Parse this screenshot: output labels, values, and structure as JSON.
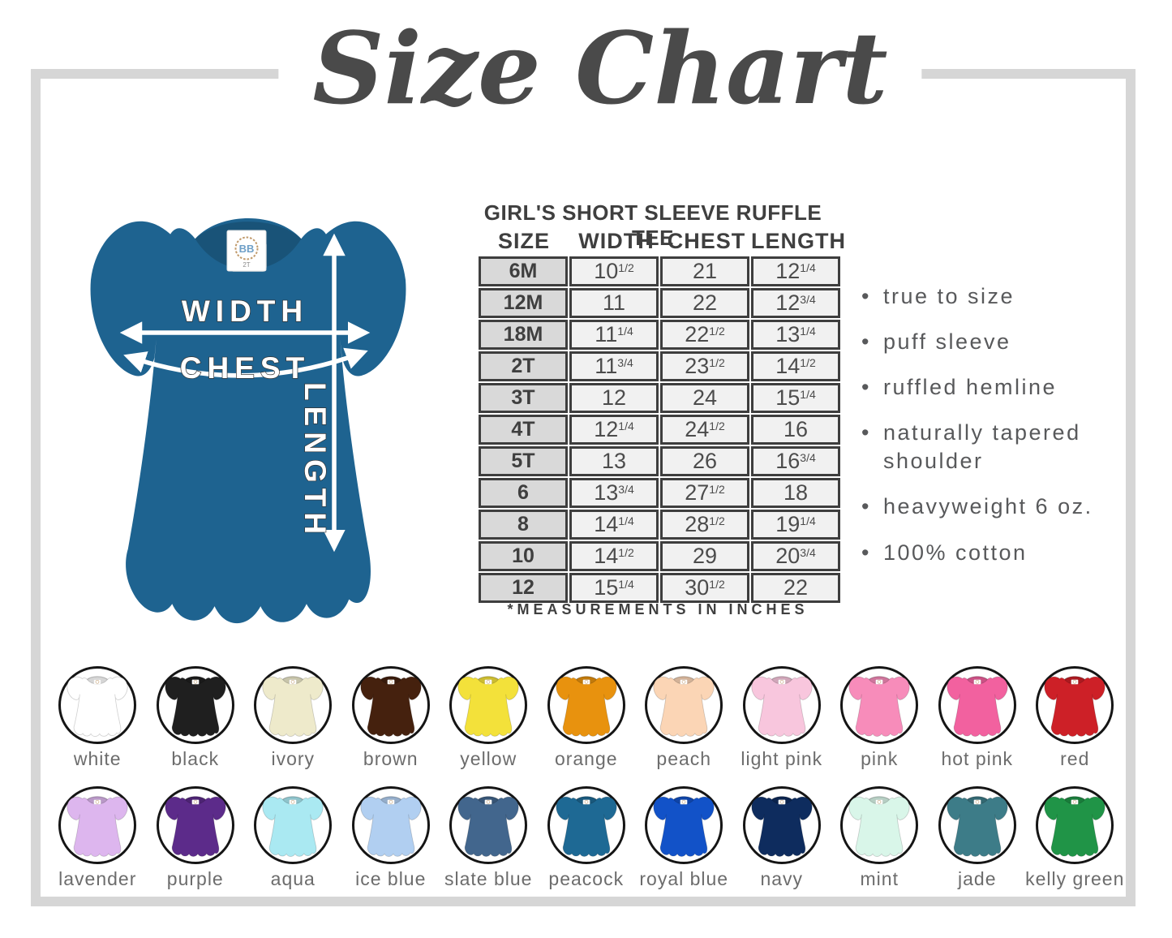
{
  "title": "Size Chart",
  "product": {
    "name": "GIRL'S SHORT SLEEVE RUFFLE TEE",
    "note": "*MEASUREMENTS IN INCHES"
  },
  "diagram": {
    "width_label": "WIDTH",
    "chest_label": "CHEST",
    "length_label": "LENGTH",
    "shirt_color": "#1e6390",
    "tag_logo": "BB",
    "tag_size": "2T"
  },
  "size_table": {
    "columns": [
      "SIZE",
      "WIDTH",
      "CHEST",
      "LENGTH"
    ],
    "rows": [
      {
        "size": "6M",
        "width": "10 1/2",
        "chest": "21",
        "length": "12 1/4"
      },
      {
        "size": "12M",
        "width": "11",
        "chest": "22",
        "length": "12 3/4"
      },
      {
        "size": "18M",
        "width": "11 1/4",
        "chest": "22 1/2",
        "length": "13 1/4"
      },
      {
        "size": "2T",
        "width": "11 3/4",
        "chest": "23 1/2",
        "length": "14 1/2"
      },
      {
        "size": "3T",
        "width": "12",
        "chest": "24",
        "length": "15 1/4"
      },
      {
        "size": "4T",
        "width": "12 1/4",
        "chest": "24 1/2",
        "length": "16"
      },
      {
        "size": "5T",
        "width": "13",
        "chest": "26",
        "length": "16 3/4"
      },
      {
        "size": "6",
        "width": "13 3/4",
        "chest": "27 1/2",
        "length": "18"
      },
      {
        "size": "8",
        "width": "14 1/4",
        "chest": "28 1/2",
        "length": "19 1/4"
      },
      {
        "size": "10",
        "width": "14 1/2",
        "chest": "29",
        "length": "20 3/4"
      },
      {
        "size": "12",
        "width": "15 1/4",
        "chest": "30 1/2",
        "length": "22"
      }
    ]
  },
  "features": [
    "true to size",
    "puff sleeve",
    "ruffled hemline",
    "naturally tapered shoulder",
    "heavyweight 6 oz.",
    "100% cotton"
  ],
  "swatches": {
    "rows": [
      [
        {
          "name": "white",
          "hex": "#ffffff"
        },
        {
          "name": "black",
          "hex": "#1f1f1f"
        },
        {
          "name": "ivory",
          "hex": "#eeeacb"
        },
        {
          "name": "brown",
          "hex": "#45210e"
        },
        {
          "name": "yellow",
          "hex": "#f3e13a"
        },
        {
          "name": "orange",
          "hex": "#e8920e"
        },
        {
          "name": "peach",
          "hex": "#fbd5b5"
        },
        {
          "name": "light pink",
          "hex": "#f8c6dd"
        },
        {
          "name": "pink",
          "hex": "#f78cba"
        },
        {
          "name": "hot pink",
          "hex": "#f2619f"
        },
        {
          "name": "red",
          "hex": "#cd2027"
        }
      ],
      [
        {
          "name": "lavender",
          "hex": "#ddb6ee"
        },
        {
          "name": "purple",
          "hex": "#5c2b8a"
        },
        {
          "name": "aqua",
          "hex": "#aae9f2"
        },
        {
          "name": "ice blue",
          "hex": "#b1cff1"
        },
        {
          "name": "slate blue",
          "hex": "#42668d"
        },
        {
          "name": "peacock",
          "hex": "#1e6994"
        },
        {
          "name": "royal blue",
          "hex": "#1252c8"
        },
        {
          "name": "navy",
          "hex": "#0e2c5e"
        },
        {
          "name": "mint",
          "hex": "#d9f6e9"
        },
        {
          "name": "jade",
          "hex": "#3d7c88"
        },
        {
          "name": "kelly green",
          "hex": "#209447"
        }
      ]
    ]
  }
}
